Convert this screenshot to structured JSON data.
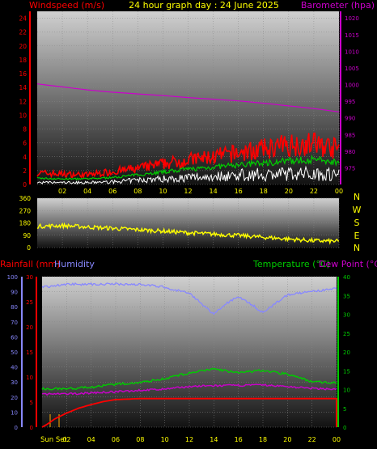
{
  "header": {
    "title": "24 hour graph day : 24 June 2025",
    "left_label": "Windspeed (m/s)",
    "right_label": "Barometer (hpa)"
  },
  "direction_axis": {
    "labels": [
      "N",
      "W",
      "S",
      "E",
      "N"
    ]
  },
  "bottom_header": {
    "rainfall_label": "Rainfall (mm)",
    "humidity_label": "Humidity",
    "temperature_label": "Temperature (°C)",
    "dewpoint_label": "Dew Point (°C)"
  },
  "sun_labels": {
    "sunset": "Sun Set"
  },
  "colors": {
    "windspeed": "#ff0000",
    "gust_avg": "#00cc00",
    "wind_min": "#ffffff",
    "barometer": "#cc00cc",
    "direction": "#ffff00",
    "rainfall": "#ff0000",
    "humidity": "#8888ff",
    "temperature": "#00cc00",
    "dewpoint": "#cc00cc",
    "sun_marker": "#ffaa00"
  },
  "chart_data": [
    {
      "type": "line",
      "title": "24 hour graph day : 24 June 2025",
      "x_ticks": [
        "02",
        "04",
        "06",
        "08",
        "10",
        "12",
        "14",
        "16",
        "18",
        "20",
        "22",
        "00"
      ],
      "ylabel": "Windspeed (m/s)",
      "ylim": [
        0,
        25
      ],
      "y_ticks": [
        "0",
        "2",
        "4",
        "6",
        "8",
        "10",
        "12",
        "14",
        "16",
        "18",
        "20",
        "22",
        "24"
      ],
      "y2label": "Barometer (hpa)",
      "y2lim": [
        970,
        1022
      ],
      "y2_ticks": [
        "975",
        "980",
        "985",
        "990",
        "995",
        "1000",
        "1005",
        "1010",
        "1015",
        "1020"
      ],
      "grid": true,
      "series": [
        {
          "name": "Windspeed (m/s)",
          "axis": "left",
          "x": [
            0,
            2,
            4,
            6,
            8,
            10,
            12,
            14,
            16,
            18,
            20,
            22,
            24
          ],
          "values": [
            1.8,
            1.6,
            1.5,
            2.0,
            2.5,
            3.2,
            3.8,
            4.3,
            4.9,
            5.5,
            6.2,
            6.4,
            5.5
          ]
        },
        {
          "name": "Gust average",
          "axis": "left",
          "x": [
            0,
            2,
            4,
            6,
            8,
            10,
            12,
            14,
            16,
            18,
            20,
            22,
            24
          ],
          "values": [
            0.9,
            0.8,
            0.8,
            1.0,
            1.4,
            1.8,
            2.2,
            2.5,
            2.8,
            3.1,
            3.4,
            3.6,
            3.2
          ]
        },
        {
          "name": "Minimum windspeed",
          "axis": "left",
          "x": [
            0,
            2,
            4,
            6,
            8,
            10,
            12,
            14,
            16,
            18,
            20,
            22,
            24
          ],
          "values": [
            0.3,
            0.3,
            0.3,
            0.4,
            0.7,
            0.9,
            1.1,
            1.3,
            1.5,
            1.6,
            1.7,
            1.8,
            1.6
          ]
        },
        {
          "name": "Barometer (hpa)",
          "axis": "right",
          "x": [
            0,
            2,
            4,
            6,
            8,
            10,
            12,
            14,
            16,
            18,
            20,
            22,
            24
          ],
          "values": [
            1000.2,
            999.3,
            998.4,
            997.7,
            997.2,
            996.7,
            996.1,
            995.6,
            995.1,
            994.4,
            993.6,
            992.8,
            991.8
          ]
        }
      ]
    },
    {
      "type": "scatter",
      "x_ticks": [],
      "ylim": [
        0,
        360
      ],
      "y_ticks": [
        "0",
        "90",
        "180",
        "270",
        "360"
      ],
      "grid": true,
      "series": [
        {
          "name": "Wind direction (degrees)",
          "x": [
            0,
            2,
            4,
            6,
            8,
            10,
            12,
            14,
            16,
            18,
            20,
            22,
            24
          ],
          "values": [
            155,
            160,
            150,
            140,
            130,
            120,
            108,
            98,
            88,
            75,
            62,
            50,
            45
          ]
        }
      ]
    },
    {
      "type": "line",
      "x_ticks": [
        "Sun Set",
        "02",
        "04",
        "06",
        "08",
        "10",
        "12",
        "14",
        "16",
        "18",
        "20",
        "22",
        "00"
      ],
      "ylabel": "Humidity",
      "ylim": [
        0,
        100
      ],
      "y_ticks": [
        "0",
        "10",
        "20",
        "30",
        "40",
        "50",
        "60",
        "70",
        "80",
        "90",
        "100"
      ],
      "y_rain_label": "Rainfall (mm)",
      "y_rain_lim": [
        0,
        30
      ],
      "y_rain_ticks": [
        "0",
        "5",
        "10",
        "15",
        "20",
        "25",
        "30"
      ],
      "y2label": "Temperature (°C)",
      "y2lim": [
        0,
        40
      ],
      "y2_ticks": [
        "0",
        "5",
        "10",
        "15",
        "20",
        "25",
        "30",
        "35",
        "40"
      ],
      "grid": true,
      "series": [
        {
          "name": "Humidity",
          "axis": "humidity",
          "x": [
            0,
            2,
            4,
            6,
            8,
            10,
            12,
            13,
            14,
            15,
            16,
            17,
            18,
            19,
            20,
            22,
            24
          ],
          "values": [
            93,
            95,
            95,
            95,
            95,
            93,
            89,
            82,
            75,
            82,
            87,
            82,
            76,
            82,
            88,
            90,
            92
          ]
        },
        {
          "name": "Rainfall (mm)",
          "axis": "rain",
          "x": [
            0,
            0.5,
            1,
            2,
            3,
            4,
            5,
            6,
            8,
            24
          ],
          "values": [
            0,
            0.7,
            1.6,
            2.8,
            3.8,
            4.5,
            5.1,
            5.5,
            5.7,
            5.7
          ]
        },
        {
          "name": "Temperature (°C)",
          "axis": "right",
          "x": [
            0,
            2,
            4,
            6,
            8,
            10,
            12,
            14,
            16,
            18,
            20,
            22,
            24
          ],
          "values": [
            10.2,
            10.2,
            10.6,
            11.4,
            11.9,
            12.9,
            14.4,
            15.5,
            14.4,
            15.1,
            14.1,
            12.1,
            11.8
          ]
        },
        {
          "name": "Dew Point (°C)",
          "axis": "right",
          "x": [
            0,
            2,
            4,
            6,
            8,
            10,
            12,
            14,
            16,
            18,
            20,
            22,
            24
          ],
          "values": [
            8.8,
            8.8,
            9.1,
            9.4,
            9.8,
            10.1,
            10.8,
            11.0,
            11.1,
            11.2,
            10.8,
            10.3,
            10.1
          ]
        }
      ]
    }
  ]
}
